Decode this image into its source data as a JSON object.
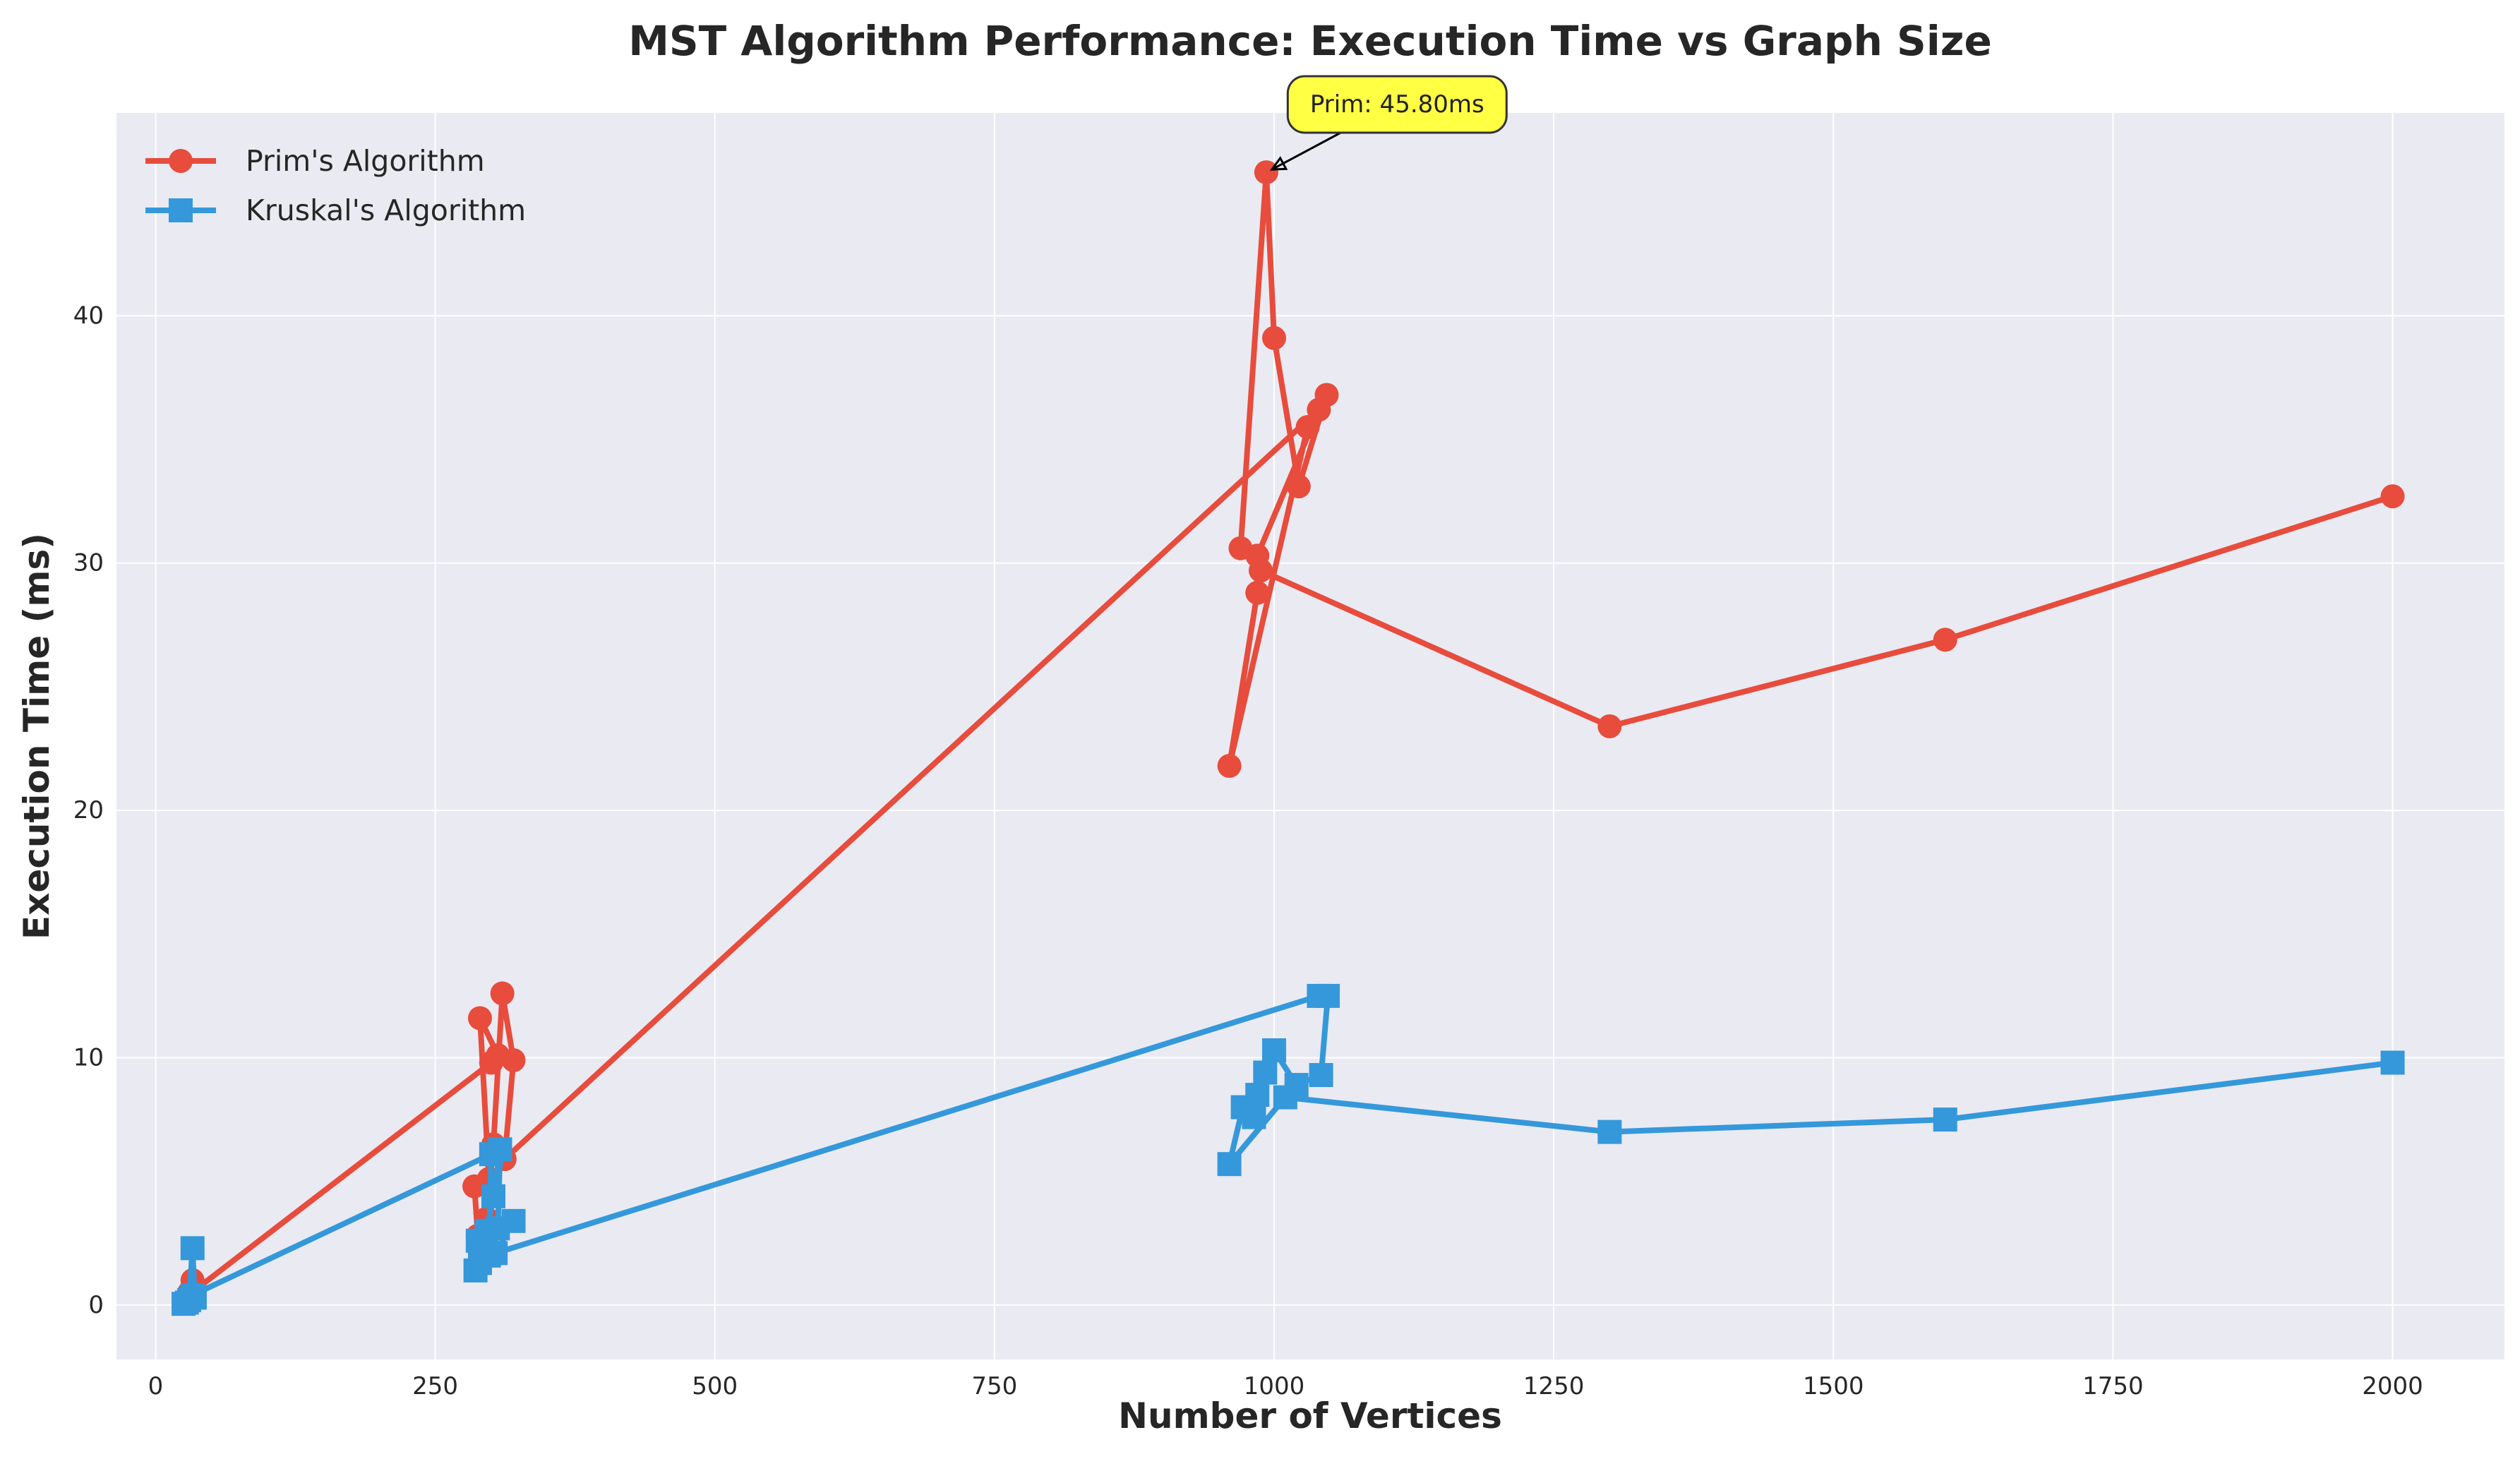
{
  "colors": {
    "plot_background": "#eaeaf2",
    "grid": "#ffffff",
    "prim": "#e74c3c",
    "kruskal": "#3498db",
    "annotation_box": "#ffff44"
  },
  "chart_data": {
    "type": "line",
    "title": "MST Algorithm Performance: Execution Time vs Graph Size",
    "xlabel": "Number of Vertices",
    "ylabel": "Execution Time (ms)",
    "xlim": [
      -35,
      2100
    ],
    "ylim": [
      -2.2,
      48.2
    ],
    "xticks": [
      0,
      250,
      500,
      750,
      1000,
      1250,
      1500,
      1750,
      2000
    ],
    "yticks": [
      0,
      10,
      20,
      30,
      40
    ],
    "grid": true,
    "legend_position": "top-left",
    "series": [
      {
        "name": "Prim's Algorithm",
        "marker": "circle",
        "color": "#e74c3c",
        "points": [
          {
            "x": 25,
            "y": 0.1
          },
          {
            "x": 28,
            "y": 0.3
          },
          {
            "x": 30,
            "y": 0.5
          },
          {
            "x": 32,
            "y": 0.2
          },
          {
            "x": 33,
            "y": 1.0
          },
          {
            "x": 35,
            "y": 0.6
          },
          {
            "x": 300,
            "y": 9.8
          },
          {
            "x": 306,
            "y": 10.1
          },
          {
            "x": 290,
            "y": 11.6
          },
          {
            "x": 298,
            "y": 5.1
          },
          {
            "x": 285,
            "y": 4.8
          },
          {
            "x": 288,
            "y": 2.8
          },
          {
            "x": 292,
            "y": 2.0
          },
          {
            "x": 296,
            "y": 3.5
          },
          {
            "x": 302,
            "y": 6.5
          },
          {
            "x": 310,
            "y": 12.6
          },
          {
            "x": 320,
            "y": 9.9
          },
          {
            "x": 312,
            "y": 5.9
          },
          {
            "x": 1040,
            "y": 36.2
          },
          {
            "x": 985,
            "y": 30.3
          },
          {
            "x": 970,
            "y": 30.6
          },
          {
            "x": 993,
            "y": 45.8
          },
          {
            "x": 1000,
            "y": 39.1
          },
          {
            "x": 1022,
            "y": 33.1
          },
          {
            "x": 1047,
            "y": 36.8
          },
          {
            "x": 1030,
            "y": 35.5
          },
          {
            "x": 960,
            "y": 21.8
          },
          {
            "x": 985,
            "y": 28.8
          },
          {
            "x": 988,
            "y": 29.7
          },
          {
            "x": 1300,
            "y": 23.4
          },
          {
            "x": 1600,
            "y": 26.9
          },
          {
            "x": 2000,
            "y": 32.7
          }
        ]
      },
      {
        "name": "Kruskal's Algorithm",
        "marker": "square",
        "color": "#3498db",
        "points": [
          {
            "x": 25,
            "y": 0.05
          },
          {
            "x": 28,
            "y": 0.1
          },
          {
            "x": 30,
            "y": 0.2
          },
          {
            "x": 33,
            "y": 2.3
          },
          {
            "x": 35,
            "y": 0.3
          },
          {
            "x": 33,
            "y": 0.4
          },
          {
            "x": 300,
            "y": 6.1
          },
          {
            "x": 298,
            "y": 2.0
          },
          {
            "x": 290,
            "y": 1.7
          },
          {
            "x": 286,
            "y": 1.4
          },
          {
            "x": 288,
            "y": 2.6
          },
          {
            "x": 292,
            "y": 2.3
          },
          {
            "x": 296,
            "y": 3.0
          },
          {
            "x": 302,
            "y": 4.4
          },
          {
            "x": 308,
            "y": 6.3
          },
          {
            "x": 306,
            "y": 3.1
          },
          {
            "x": 320,
            "y": 3.4
          },
          {
            "x": 304,
            "y": 2.1
          },
          {
            "x": 1040,
            "y": 12.5
          },
          {
            "x": 1048,
            "y": 12.5
          },
          {
            "x": 1042,
            "y": 9.3
          },
          {
            "x": 1020,
            "y": 8.9
          },
          {
            "x": 1000,
            "y": 10.3
          },
          {
            "x": 992,
            "y": 9.4
          },
          {
            "x": 985,
            "y": 8.5
          },
          {
            "x": 982,
            "y": 7.6
          },
          {
            "x": 972,
            "y": 8.0
          },
          {
            "x": 960,
            "y": 5.7
          },
          {
            "x": 1010,
            "y": 8.4
          },
          {
            "x": 1300,
            "y": 7.0
          },
          {
            "x": 1600,
            "y": 7.5
          },
          {
            "x": 2000,
            "y": 9.8
          }
        ]
      }
    ],
    "annotation": {
      "text": "Prim: 45.80ms",
      "point": {
        "x": 993,
        "y": 45.8
      },
      "label_at": {
        "x": 1110,
        "y": 48.2
      }
    }
  }
}
